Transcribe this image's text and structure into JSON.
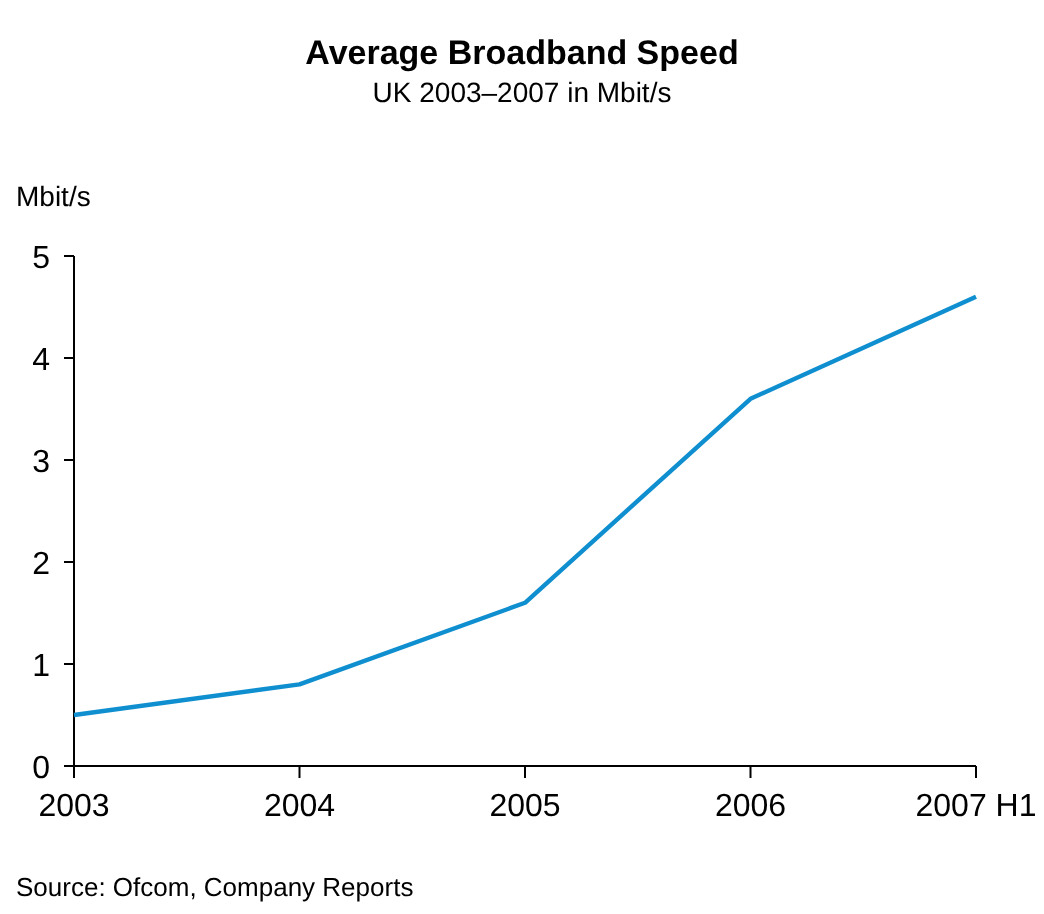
{
  "chart_data": {
    "type": "line",
    "title": "Average Broadband Speed",
    "subtitle": "UK 2003–2007 in Mbit/s",
    "ylabel": "Mbit/s",
    "categories": [
      "2003",
      "2004",
      "2005",
      "2006",
      "2007 H1"
    ],
    "series": [
      {
        "color": "#0f8fcf",
        "values": [
          0.5,
          0.8,
          1.6,
          3.6,
          4.6
        ]
      }
    ],
    "ylim": [
      0,
      5
    ],
    "yticks": [
      0,
      1,
      2,
      3,
      4,
      5
    ],
    "grid": false,
    "marker": "none",
    "line_style": "solid",
    "annotations": [
      "Source: Ofcom, Company Reports"
    ]
  }
}
